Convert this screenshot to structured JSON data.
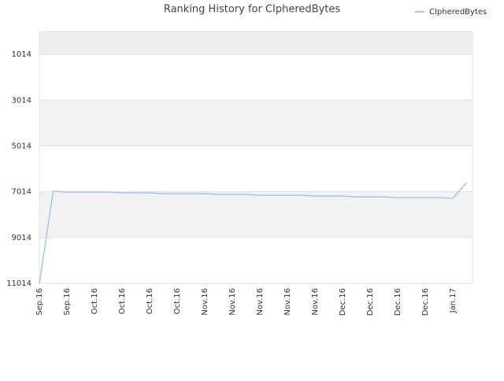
{
  "chart_data": {
    "type": "line",
    "title": "Ranking History for CIpheredBytes",
    "categories": [
      "Sep.16",
      null,
      "Sep.16",
      null,
      "Oct.16",
      null,
      "Oct.16",
      null,
      "Oct.16",
      null,
      "Oct.16",
      null,
      "Nov.16",
      null,
      "Nov.16",
      null,
      "Nov.16",
      null,
      "Nov.16",
      null,
      "Nov.16",
      null,
      "Dec.16",
      null,
      "Dec.16",
      null,
      "Dec.16",
      null,
      "Dec.16",
      null,
      "Jan.17",
      null
    ],
    "series": [
      {
        "name": "CIpheredBytes",
        "color": "#9fc8ef",
        "values": [
          11014,
          6990,
          7025,
          7025,
          7025,
          7025,
          7060,
          7060,
          7060,
          7095,
          7095,
          7095,
          7095,
          7130,
          7130,
          7130,
          7165,
          7165,
          7165,
          7165,
          7200,
          7200,
          7200,
          7235,
          7235,
          7235,
          7270,
          7270,
          7270,
          7270,
          7305,
          6620
        ]
      }
    ],
    "ylim": [
      11014,
      14
    ],
    "yticks": [
      1014,
      3014,
      5014,
      7014,
      9014,
      11014
    ],
    "grid": true,
    "legend": "top-right"
  }
}
